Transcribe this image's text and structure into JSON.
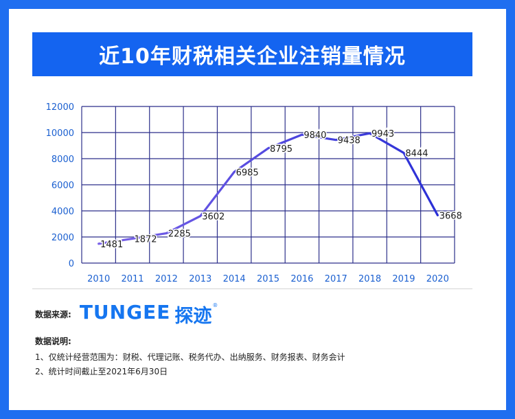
{
  "title": "近10年财税相关企业注销量情况",
  "source": {
    "label": "数据来源:",
    "logo_latin": "TUNGEE",
    "logo_cn": "探迹",
    "logo_reg": "®"
  },
  "notes": {
    "title": "数据说明:",
    "lines": [
      "1、仅统计经营范围为：财税、代理记账、税务代办、出纳服务、财务报表、财务会计",
      "2、统计时间截止至2021年6月30日"
    ]
  },
  "colors": {
    "background": "#1f6ef0",
    "title_bar": "#1464f0",
    "line_start": "#7b63e8",
    "line_end": "#2a2fd6",
    "axis_labels": "#1a5fd0",
    "grid": "#2c2f8a"
  },
  "chart_data": {
    "type": "line",
    "categories": [
      "2010",
      "2011",
      "2012",
      "2013",
      "2014",
      "2015",
      "2016",
      "2017",
      "2018",
      "2019",
      "2020"
    ],
    "series": [
      {
        "values": [
          1481,
          1872,
          2285,
          3602,
          6985,
          8795,
          9840,
          9438,
          9943,
          8444,
          3668
        ]
      }
    ],
    "data_labels": [
      "1481",
      "1872",
      "2285",
      "3602",
      "6985",
      "8795",
      "9840",
      "9438",
      "9943",
      "8444",
      "3668"
    ],
    "y_ticks": [
      "0",
      "2000",
      "4000",
      "6000",
      "8000",
      "10000",
      "12000"
    ],
    "ylim": [
      0,
      12000
    ],
    "grid": true,
    "legend": "none"
  }
}
